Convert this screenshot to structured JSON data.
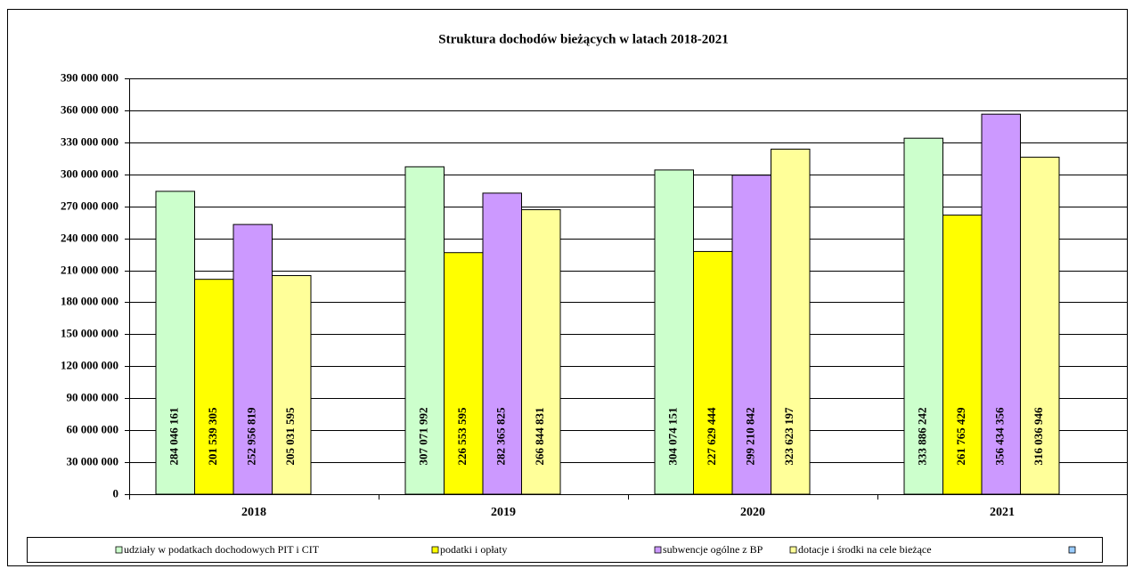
{
  "chart_data": {
    "type": "bar",
    "title": "Struktura dochodów bieżących w latach 2018-2021",
    "categories": [
      "2018",
      "2019",
      "2020",
      "2021"
    ],
    "series": [
      {
        "name": "udziały w podatkach dochodowych PIT i CIT",
        "color": "#ccffcc",
        "values": [
          284046161,
          307071992,
          304074151,
          333886242
        ],
        "value_labels": [
          "284 046 161",
          "307 071 992",
          "304 074 151",
          "333 886 242"
        ]
      },
      {
        "name": "podatki i opłaty",
        "color": "#ffff00",
        "values": [
          201539305,
          226553595,
          227629444,
          261765429
        ],
        "value_labels": [
          "201 539 305",
          "226 553 595",
          "227 629 444",
          "261 765 429"
        ]
      },
      {
        "name": "subwencje ogólne z BP",
        "color": "#cc99ff",
        "values": [
          252956819,
          282365825,
          299210842,
          356434356
        ],
        "value_labels": [
          "252 956 819",
          "282 365 825",
          "299 210 842",
          "356 434 356"
        ]
      },
      {
        "name": "dotacje i środki na cele bieżące",
        "color": "#ffff99",
        "values": [
          205031595,
          266844831,
          323623197,
          316036946
        ],
        "value_labels": [
          "205 031 595",
          "266 844 831",
          "323 623 197",
          "316 036 946"
        ]
      }
    ],
    "ylim": [
      0,
      390000000
    ],
    "yticks": [
      0,
      {
        "value": 30000000,
        "label": "30 000 000"
      },
      {
        "value": 60000000,
        "label": "60 000 000"
      },
      {
        "value": 90000000,
        "label": "90 000 000"
      },
      {
        "value": 120000000,
        "label": "120 000 000"
      },
      {
        "value": 150000000,
        "label": "150 000 000"
      },
      {
        "value": 180000000,
        "label": "180 000 000"
      },
      {
        "value": 210000000,
        "label": "210 000 000"
      },
      {
        "value": 240000000,
        "label": "240 000 000"
      },
      {
        "value": 270000000,
        "label": "270 000 000"
      },
      {
        "value": 300000000,
        "label": "300 000 000"
      },
      {
        "value": 330000000,
        "label": "330 000 000"
      },
      {
        "value": 360000000,
        "label": "360 000 000"
      },
      {
        "value": 390000000,
        "label": "390 000 000"
      }
    ],
    "grid": true,
    "legend": "bottom"
  }
}
